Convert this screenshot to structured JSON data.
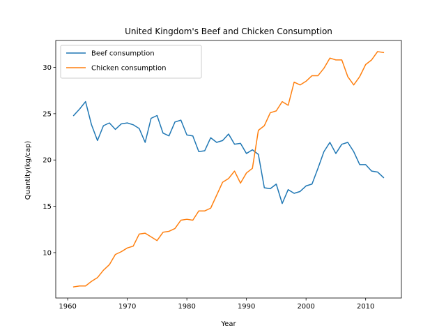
{
  "chart_data": {
    "type": "line",
    "title": "United Kingdom's Beef and Chicken Consumption",
    "xlabel": "Year",
    "ylabel": "Quantity(kg/cap)",
    "xlim": [
      1958,
      2016
    ],
    "ylim": [
      5.1,
      32.9
    ],
    "xticks": [
      1960,
      1970,
      1980,
      1990,
      2000,
      2010
    ],
    "yticks": [
      10,
      15,
      20,
      25,
      30
    ],
    "grid": false,
    "legend_position": "upper-left",
    "x": [
      1961,
      1962,
      1963,
      1964,
      1965,
      1966,
      1967,
      1968,
      1969,
      1970,
      1971,
      1972,
      1973,
      1974,
      1975,
      1976,
      1977,
      1978,
      1979,
      1980,
      1981,
      1982,
      1983,
      1984,
      1985,
      1986,
      1987,
      1988,
      1989,
      1990,
      1991,
      1992,
      1993,
      1994,
      1995,
      1996,
      1997,
      1998,
      1999,
      2000,
      2001,
      2002,
      2003,
      2004,
      2005,
      2006,
      2007,
      2008,
      2009,
      2010,
      2011,
      2012,
      2013
    ],
    "series": [
      {
        "name": "Beef consumption",
        "color": "#1f77b4",
        "values": [
          24.8,
          25.5,
          26.3,
          23.8,
          22.1,
          23.7,
          24.0,
          23.3,
          23.9,
          24.0,
          23.8,
          23.4,
          21.9,
          24.5,
          24.8,
          22.9,
          22.6,
          24.1,
          24.3,
          22.7,
          22.6,
          20.9,
          21.0,
          22.4,
          21.9,
          22.1,
          22.8,
          21.7,
          21.8,
          20.7,
          21.1,
          20.6,
          17.0,
          16.9,
          17.4,
          15.3,
          16.8,
          16.4,
          16.6,
          17.2,
          17.4,
          19.1,
          20.9,
          21.9,
          20.7,
          21.7,
          21.9,
          20.9,
          19.5,
          19.5,
          18.8,
          18.7,
          18.1
        ]
      },
      {
        "name": "Chicken consumption",
        "color": "#ff7f0e",
        "values": [
          6.3,
          6.4,
          6.4,
          6.9,
          7.3,
          8.1,
          8.7,
          9.8,
          10.1,
          10.5,
          10.7,
          12.0,
          12.1,
          11.7,
          11.3,
          12.2,
          12.3,
          12.6,
          13.5,
          13.6,
          13.5,
          14.5,
          14.5,
          14.8,
          16.2,
          17.6,
          18.0,
          18.8,
          17.5,
          18.6,
          19.1,
          23.2,
          23.7,
          25.1,
          25.3,
          26.3,
          25.9,
          28.4,
          28.1,
          28.5,
          29.1,
          29.1,
          29.9,
          31.0,
          30.8,
          30.8,
          29.0,
          28.1,
          29.0,
          30.3,
          30.8,
          31.7,
          31.6
        ]
      }
    ]
  }
}
